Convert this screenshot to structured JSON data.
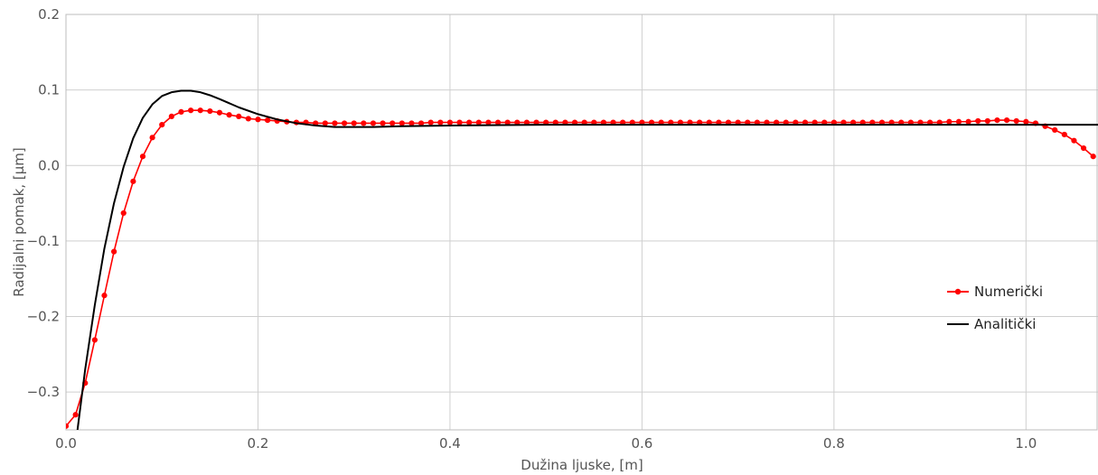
{
  "chart_data": {
    "type": "line",
    "xlabel": "Dužina ljuske, [m]",
    "ylabel": "Radijalni pomak, [μm]",
    "xlim": [
      0.0,
      1.075
    ],
    "ylim": [
      -0.35,
      0.2
    ],
    "x_ticks": [
      {
        "value": 0.0,
        "label": "0.0"
      },
      {
        "value": 0.2,
        "label": "0.2"
      },
      {
        "value": 0.4,
        "label": "0.4"
      },
      {
        "value": 0.6,
        "label": "0.6"
      },
      {
        "value": 0.8,
        "label": "0.8"
      },
      {
        "value": 1.0,
        "label": "1.0"
      }
    ],
    "y_ticks": [
      {
        "value": 0.2,
        "label": "0.2"
      },
      {
        "value": 0.1,
        "label": "0.1"
      },
      {
        "value": 0.0,
        "label": "0.0"
      },
      {
        "value": -0.1,
        "label": "−0.1"
      },
      {
        "value": -0.2,
        "label": "−0.2"
      },
      {
        "value": -0.3,
        "label": "−0.3"
      }
    ],
    "grid": true,
    "legend_position": "right",
    "series": [
      {
        "name": "Numerički",
        "color": "#ff0000",
        "marker": "circle",
        "x": [
          0.0,
          0.01,
          0.02,
          0.03,
          0.04,
          0.05,
          0.06,
          0.07,
          0.08,
          0.09,
          0.1,
          0.11,
          0.12,
          0.13,
          0.14,
          0.15,
          0.16,
          0.17,
          0.18,
          0.19,
          0.2,
          0.21,
          0.22,
          0.23,
          0.24,
          0.25,
          0.26,
          0.27,
          0.28,
          0.29,
          0.3,
          0.31,
          0.32,
          0.33,
          0.34,
          0.35,
          0.36,
          0.37,
          0.38,
          0.39,
          0.4,
          0.41,
          0.42,
          0.43,
          0.44,
          0.45,
          0.46,
          0.47,
          0.48,
          0.49,
          0.5,
          0.51,
          0.52,
          0.53,
          0.54,
          0.55,
          0.56,
          0.57,
          0.58,
          0.59,
          0.6,
          0.61,
          0.62,
          0.63,
          0.64,
          0.65,
          0.66,
          0.67,
          0.68,
          0.69,
          0.7,
          0.71,
          0.72,
          0.73,
          0.74,
          0.75,
          0.76,
          0.77,
          0.78,
          0.79,
          0.8,
          0.81,
          0.82,
          0.83,
          0.84,
          0.85,
          0.86,
          0.87,
          0.88,
          0.89,
          0.9,
          0.91,
          0.92,
          0.93,
          0.94,
          0.95,
          0.96,
          0.97,
          0.98,
          0.99,
          1.0,
          1.01,
          1.02,
          1.03,
          1.04,
          1.05,
          1.06,
          1.07
        ],
        "y": [
          -0.345,
          -0.33,
          -0.288,
          -0.231,
          -0.172,
          -0.114,
          -0.063,
          -0.021,
          0.012,
          0.037,
          0.054,
          0.065,
          0.071,
          0.073,
          0.073,
          0.072,
          0.07,
          0.067,
          0.065,
          0.062,
          0.061,
          0.06,
          0.059,
          0.058,
          0.057,
          0.057,
          0.056,
          0.056,
          0.056,
          0.056,
          0.056,
          0.056,
          0.056,
          0.056,
          0.056,
          0.056,
          0.056,
          0.056,
          0.057,
          0.057,
          0.057,
          0.057,
          0.057,
          0.057,
          0.057,
          0.057,
          0.057,
          0.057,
          0.057,
          0.057,
          0.057,
          0.057,
          0.057,
          0.057,
          0.057,
          0.057,
          0.057,
          0.057,
          0.057,
          0.057,
          0.057,
          0.057,
          0.057,
          0.057,
          0.057,
          0.057,
          0.057,
          0.057,
          0.057,
          0.057,
          0.057,
          0.057,
          0.057,
          0.057,
          0.057,
          0.057,
          0.057,
          0.057,
          0.057,
          0.057,
          0.057,
          0.057,
          0.057,
          0.057,
          0.057,
          0.057,
          0.057,
          0.057,
          0.057,
          0.057,
          0.057,
          0.057,
          0.058,
          0.058,
          0.058,
          0.059,
          0.059,
          0.06,
          0.06,
          0.059,
          0.058,
          0.056,
          0.052,
          0.047,
          0.041,
          0.033,
          0.023,
          0.012
        ]
      },
      {
        "name": "Analitički",
        "color": "#000000",
        "marker": "none",
        "x": [
          0.012,
          0.02,
          0.03,
          0.04,
          0.05,
          0.06,
          0.07,
          0.08,
          0.09,
          0.1,
          0.11,
          0.12,
          0.13,
          0.14,
          0.15,
          0.16,
          0.18,
          0.2,
          0.22,
          0.24,
          0.26,
          0.28,
          0.3,
          0.32,
          0.35,
          0.4,
          0.5,
          0.6,
          0.8,
          1.0,
          1.075
        ],
        "y": [
          -0.35,
          -0.27,
          -0.185,
          -0.11,
          -0.05,
          -0.002,
          0.036,
          0.063,
          0.081,
          0.092,
          0.097,
          0.099,
          0.099,
          0.097,
          0.093,
          0.088,
          0.077,
          0.068,
          0.061,
          0.056,
          0.053,
          0.051,
          0.051,
          0.051,
          0.052,
          0.053,
          0.054,
          0.054,
          0.054,
          0.054,
          0.054
        ]
      }
    ]
  }
}
